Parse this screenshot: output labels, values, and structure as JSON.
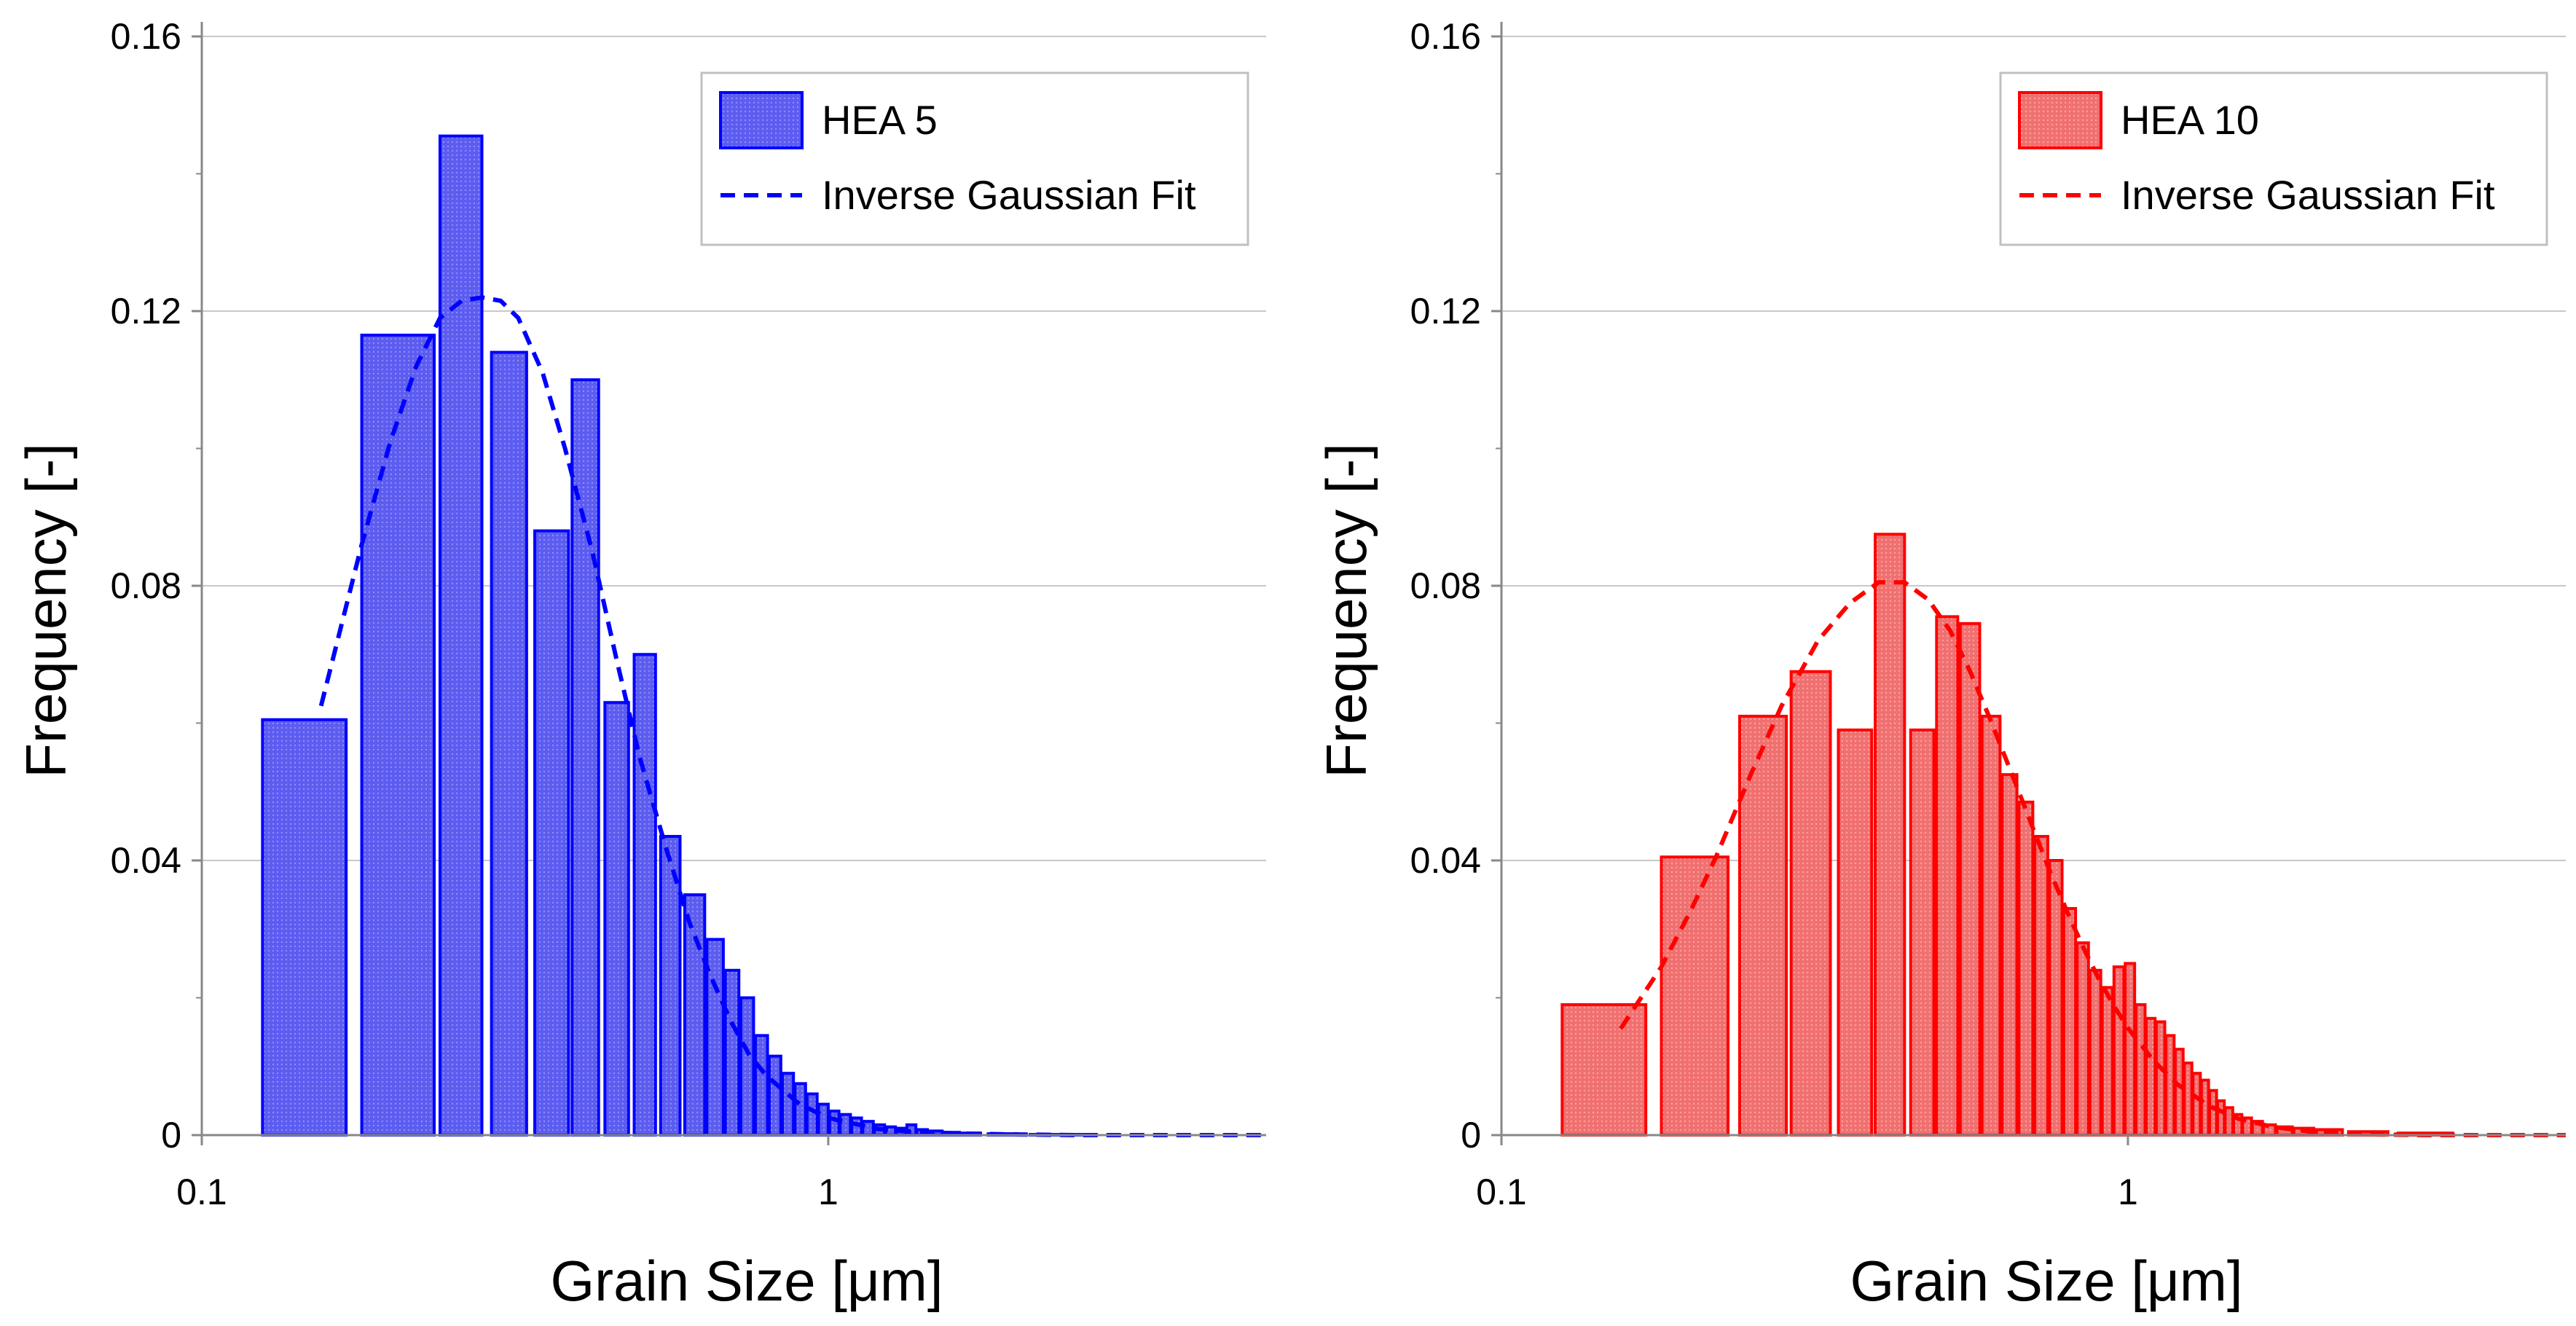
{
  "chart_data": [
    {
      "type": "bar",
      "xscale": "log",
      "xlim": [
        0.1,
        5
      ],
      "ylim": [
        0,
        0.16
      ],
      "yticks": [
        "0",
        "0.04",
        "0.08",
        "0.12",
        "0.16"
      ],
      "xticks": [
        {
          "value": 0.1,
          "label": "0.1"
        },
        {
          "value": 1,
          "label": "1"
        }
      ],
      "xlabel": "Grain Size [μm]",
      "ylabel": "Frequency [-]",
      "color": "#0000ff",
      "fill": "#5c5cf0",
      "legend": {
        "position": "top-right",
        "bar_label": "HEA 5",
        "fit_label": "Inverse Gaussian Fit"
      },
      "bins": [
        [
          0.125,
          0.17,
          0.0605
        ],
        [
          0.18,
          0.235,
          0.1165
        ],
        [
          0.24,
          0.28,
          0.1455
        ],
        [
          0.29,
          0.33,
          0.114
        ],
        [
          0.34,
          0.385,
          0.088
        ],
        [
          0.39,
          0.43,
          0.11
        ],
        [
          0.44,
          0.48,
          0.063
        ],
        [
          0.49,
          0.53,
          0.07
        ],
        [
          0.54,
          0.58,
          0.0435
        ],
        [
          0.59,
          0.635,
          0.035
        ],
        [
          0.64,
          0.68,
          0.0285
        ],
        [
          0.685,
          0.72,
          0.024
        ],
        [
          0.725,
          0.76,
          0.02
        ],
        [
          0.765,
          0.8,
          0.0145
        ],
        [
          0.805,
          0.84,
          0.0115
        ],
        [
          0.845,
          0.88,
          0.009
        ],
        [
          0.885,
          0.92,
          0.0075
        ],
        [
          0.925,
          0.96,
          0.006
        ],
        [
          0.965,
          1.0,
          0.0045
        ],
        [
          1.005,
          1.04,
          0.0035
        ],
        [
          1.045,
          1.085,
          0.003
        ],
        [
          1.09,
          1.13,
          0.0025
        ],
        [
          1.135,
          1.18,
          0.002
        ],
        [
          1.185,
          1.23,
          0.0015
        ],
        [
          1.235,
          1.28,
          0.0012
        ],
        [
          1.285,
          1.33,
          0.001
        ],
        [
          1.335,
          1.38,
          0.0015
        ],
        [
          1.385,
          1.44,
          0.0008
        ],
        [
          1.445,
          1.52,
          0.0006
        ],
        [
          1.53,
          1.62,
          0.0004
        ],
        [
          1.63,
          1.75,
          0.0003
        ],
        [
          1.8,
          2.0,
          0.0002
        ],
        [
          2.1,
          2.6,
          0.0001
        ]
      ],
      "fit": {
        "x": [
          0.155,
          0.18,
          0.2,
          0.22,
          0.24,
          0.26,
          0.28,
          0.3,
          0.32,
          0.35,
          0.38,
          0.42,
          0.46,
          0.5,
          0.55,
          0.6,
          0.65,
          0.7,
          0.75,
          0.8,
          0.9,
          1.0,
          1.2,
          1.4,
          1.7,
          2.0,
          2.5,
          3.0,
          4.0,
          5.0
        ],
        "y": [
          0.0625,
          0.086,
          0.101,
          0.112,
          0.119,
          0.1215,
          0.122,
          0.1215,
          0.119,
          0.111,
          0.1,
          0.085,
          0.069,
          0.055,
          0.042,
          0.031,
          0.023,
          0.0165,
          0.0115,
          0.0085,
          0.0045,
          0.0025,
          0.0009,
          0.0004,
          0.0002,
          0.0001,
          0.0,
          0.0,
          0.0,
          0.0
        ]
      }
    },
    {
      "type": "bar",
      "xscale": "log",
      "xlim": [
        0.1,
        5
      ],
      "ylim": [
        0,
        0.16
      ],
      "yticks": [
        "0",
        "0.04",
        "0.08",
        "0.12",
        "0.16"
      ],
      "xticks": [
        {
          "value": 0.1,
          "label": "0.1"
        },
        {
          "value": 1,
          "label": "1"
        }
      ],
      "xlabel": "Grain Size [μm]",
      "ylabel": "Frequency [-]",
      "color": "#ff0000",
      "fill": "#f07070",
      "legend": {
        "position": "top-right",
        "bar_label": "HEA 10",
        "fit_label": "Inverse Gaussian Fit"
      },
      "bins": [
        [
          0.125,
          0.17,
          0.019
        ],
        [
          0.18,
          0.23,
          0.0405
        ],
        [
          0.24,
          0.285,
          0.061
        ],
        [
          0.29,
          0.335,
          0.0675
        ],
        [
          0.345,
          0.39,
          0.059
        ],
        [
          0.395,
          0.44,
          0.0875
        ],
        [
          0.45,
          0.49,
          0.059
        ],
        [
          0.495,
          0.535,
          0.0755
        ],
        [
          0.54,
          0.58,
          0.0745
        ],
        [
          0.585,
          0.625,
          0.061
        ],
        [
          0.63,
          0.665,
          0.0525
        ],
        [
          0.67,
          0.705,
          0.0485
        ],
        [
          0.71,
          0.745,
          0.0435
        ],
        [
          0.75,
          0.785,
          0.04
        ],
        [
          0.79,
          0.825,
          0.033
        ],
        [
          0.83,
          0.865,
          0.028
        ],
        [
          0.87,
          0.905,
          0.024
        ],
        [
          0.91,
          0.945,
          0.0215
        ],
        [
          0.95,
          0.985,
          0.0245
        ],
        [
          0.99,
          1.025,
          0.025
        ],
        [
          1.03,
          1.065,
          0.019
        ],
        [
          1.07,
          1.105,
          0.017
        ],
        [
          1.11,
          1.145,
          0.0165
        ],
        [
          1.15,
          1.185,
          0.0145
        ],
        [
          1.19,
          1.225,
          0.0125
        ],
        [
          1.23,
          1.265,
          0.0105
        ],
        [
          1.27,
          1.305,
          0.009
        ],
        [
          1.31,
          1.345,
          0.008
        ],
        [
          1.35,
          1.385,
          0.0065
        ],
        [
          1.39,
          1.425,
          0.005
        ],
        [
          1.43,
          1.47,
          0.004
        ],
        [
          1.475,
          1.52,
          0.003
        ],
        [
          1.525,
          1.575,
          0.0025
        ],
        [
          1.58,
          1.64,
          0.002
        ],
        [
          1.645,
          1.72,
          0.0015
        ],
        [
          1.73,
          1.83,
          0.0012
        ],
        [
          1.84,
          1.98,
          0.001
        ],
        [
          2.0,
          2.2,
          0.0008
        ],
        [
          2.25,
          2.6,
          0.0005
        ],
        [
          2.7,
          3.3,
          0.0003
        ]
      ],
      "fit": {
        "x": [
          0.155,
          0.18,
          0.2,
          0.22,
          0.25,
          0.28,
          0.32,
          0.36,
          0.4,
          0.44,
          0.48,
          0.52,
          0.56,
          0.6,
          0.65,
          0.7,
          0.75,
          0.8,
          0.85,
          0.9,
          0.95,
          1.0,
          1.1,
          1.2,
          1.35,
          1.5,
          1.7,
          2.0,
          2.5,
          3.0,
          4.0,
          5.0
        ],
        "y": [
          0.0155,
          0.0245,
          0.0325,
          0.0405,
          0.0525,
          0.0625,
          0.072,
          0.0775,
          0.0805,
          0.0805,
          0.078,
          0.0735,
          0.0675,
          0.061,
          0.053,
          0.0455,
          0.0385,
          0.0325,
          0.0272,
          0.0226,
          0.0188,
          0.0156,
          0.0108,
          0.0074,
          0.0042,
          0.0024,
          0.0012,
          0.0004,
          0.0001,
          0.0,
          0.0,
          0.0
        ]
      }
    }
  ]
}
